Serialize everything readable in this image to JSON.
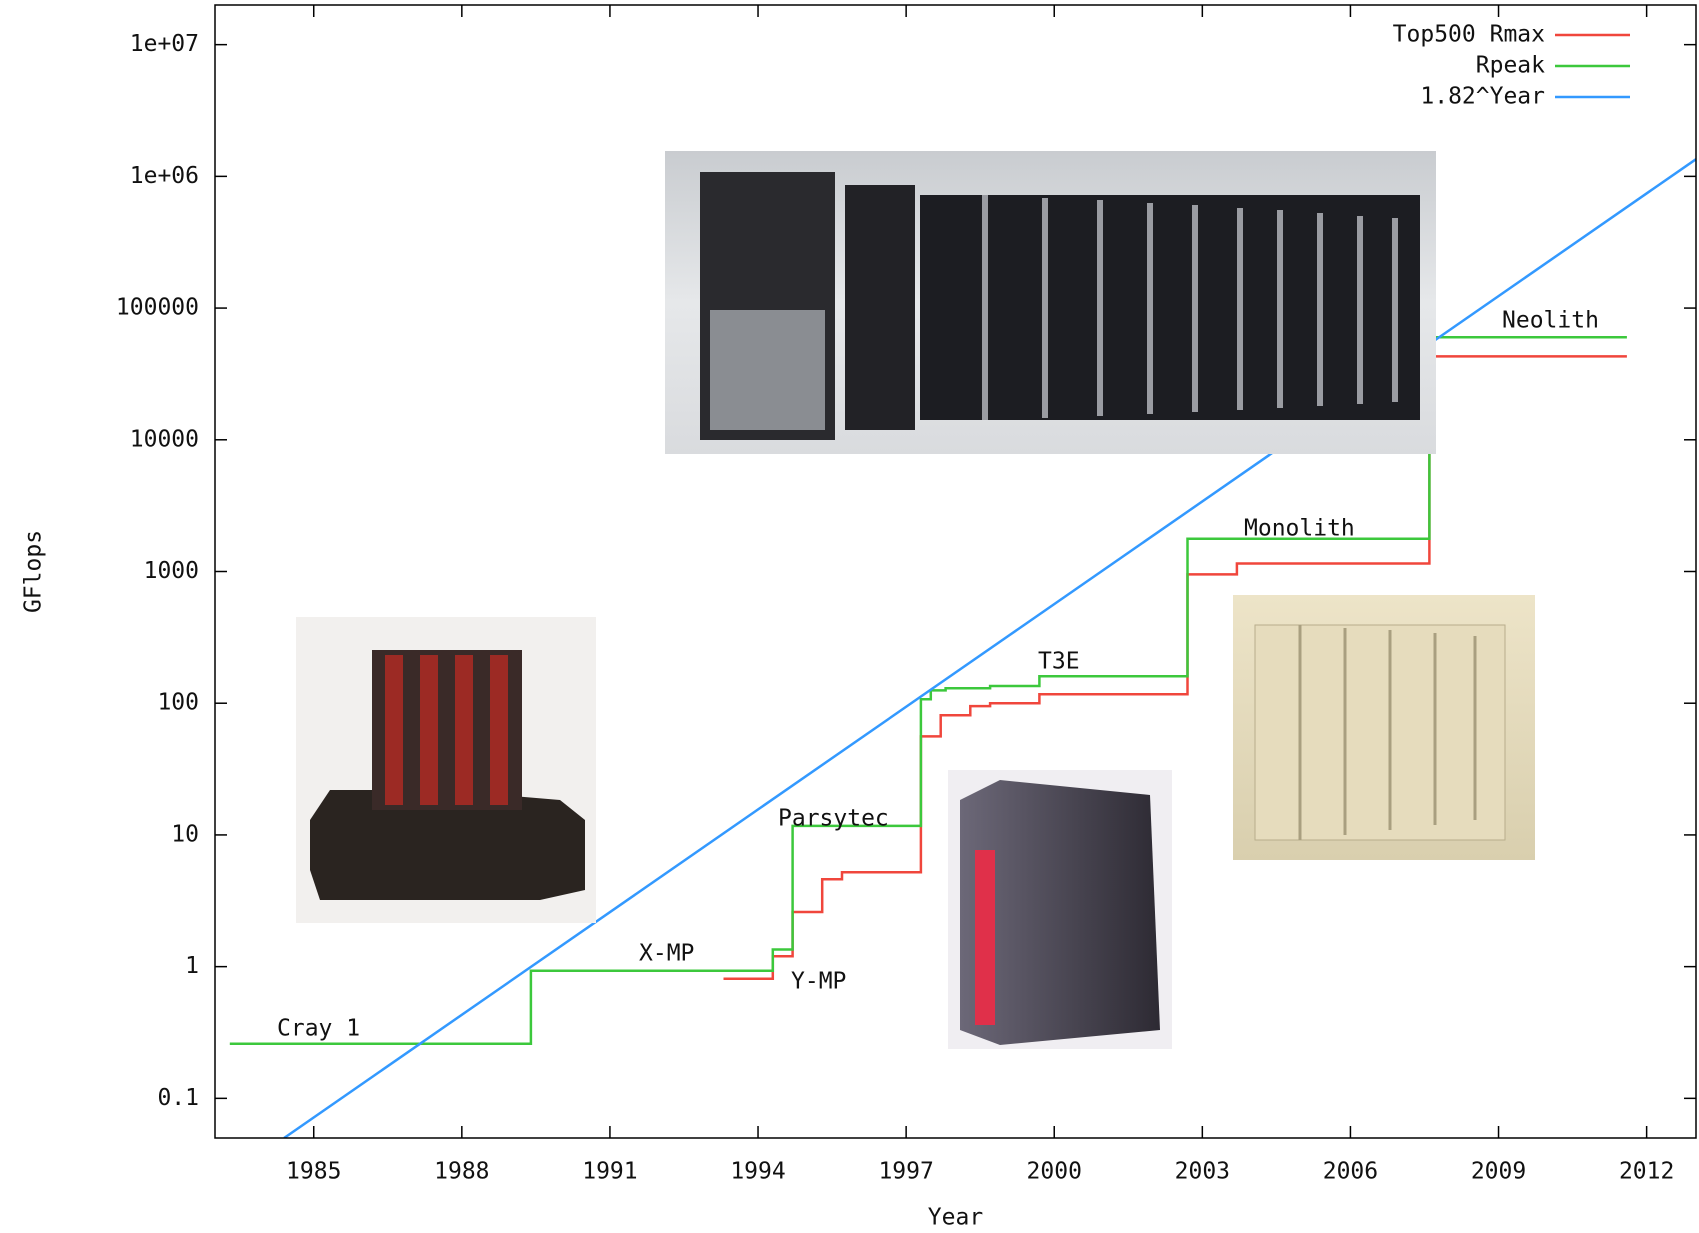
{
  "chart_data": {
    "type": "line",
    "x_label": "Year",
    "y_label": "GFlops",
    "log_y": true,
    "legend": "top-right",
    "xlim": [
      1983,
      2013
    ],
    "xticks": [
      1985,
      1988,
      1991,
      1994,
      1997,
      2000,
      2003,
      2006,
      2009,
      2012
    ],
    "ylim": [
      0.05,
      20000000
    ],
    "yticks": [
      0.1,
      1,
      10,
      100,
      1000,
      10000,
      100000,
      {
        "value": 1000000,
        "label": "1e+06"
      },
      {
        "value": 10000000,
        "label": "1e+07"
      }
    ],
    "series": [
      {
        "name": "Top500 Rmax",
        "color": "#f0463c",
        "x": [
          1993.3,
          1994.3,
          1994.3,
          1994.7,
          1994.7,
          1995.3,
          1995.3,
          1995.7,
          1995.7,
          1997.3,
          1997.3,
          1997.7,
          1997.7,
          1998.3,
          1998.3,
          1998.7,
          1998.7,
          1999.7,
          1999.7,
          2002.7,
          2002.7,
          2003.7,
          2003.7,
          2007.6,
          2007.6,
          2011.6
        ],
        "values": [
          0.81,
          0.81,
          1.2,
          1.2,
          2.6,
          2.6,
          4.6,
          4.6,
          5.2,
          5.2,
          56,
          56,
          81,
          81,
          95,
          95,
          100,
          100,
          117,
          117,
          950,
          950,
          1150,
          1150,
          43000,
          43000
        ]
      },
      {
        "name": "Rpeak",
        "color": "#3cc83c",
        "x": [
          1983.3,
          1989.4,
          1989.4,
          1994.3,
          1994.3,
          1994.7,
          1994.7,
          1997.3,
          1997.3,
          1997.5,
          1997.5,
          1997.8,
          1997.8,
          1998.7,
          1998.7,
          1999.7,
          1999.7,
          2002.7,
          2002.7,
          2007.6,
          2007.6,
          2011.6
        ],
        "values": [
          0.26,
          0.26,
          0.93,
          0.93,
          1.35,
          1.35,
          11.7,
          11.7,
          107,
          107,
          125,
          125,
          130,
          130,
          135,
          135,
          160,
          160,
          1770,
          1770,
          60000,
          60000
        ]
      },
      {
        "name": "1.82^Year",
        "color": "#3399ff",
        "x": [
          1984.4,
          2013
        ],
        "values": [
          0.05,
          1350000
        ]
      }
    ],
    "annotations": [
      "Cray 1",
      "X-MP",
      "Y-MP",
      "Parsytec",
      "T3E",
      "Monolith",
      "Neolith"
    ]
  }
}
